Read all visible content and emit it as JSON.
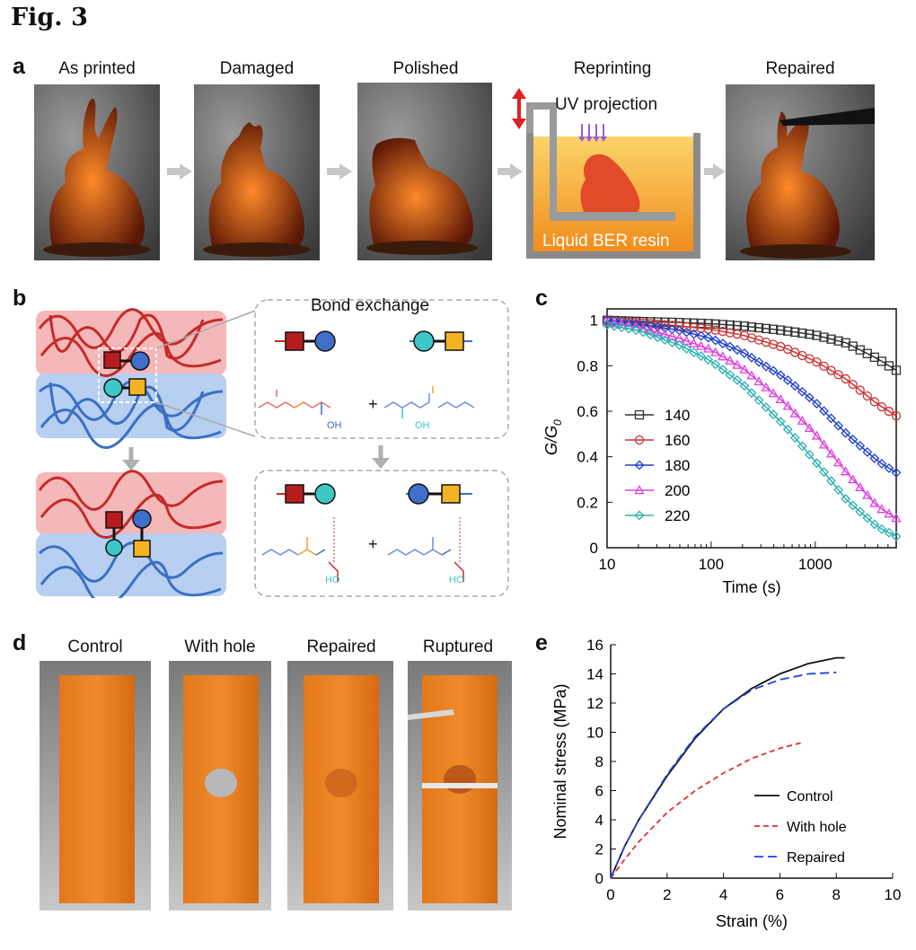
{
  "figure": {
    "title": "Fig. 3"
  },
  "panels": {
    "a": "a",
    "b": "b",
    "c": "c",
    "d": "d",
    "e": "e"
  },
  "panel_a": {
    "captions": [
      "As printed",
      "Damaged",
      "Polished",
      "Reprinting",
      "Repaired"
    ],
    "uv_label": "UV projection",
    "resin_label": "Liquid BER resin",
    "colors": {
      "bg_dark": "#2d2d2d",
      "resin_orange": "#f7a12a",
      "bunny": "#d24d1a"
    }
  },
  "panel_b": {
    "bond_exchange_label": "Bond exchange",
    "plus": "+",
    "oh": "OH",
    "ho": "HO",
    "colors": {
      "red_net": "#c42a2a",
      "blue_net": "#3a6fc4",
      "red_bg": "#f5b8b8",
      "blue_bg": "#b7cff0",
      "square_red": "#b71c1c",
      "circle_blue": "#3f6fc8",
      "circle_teal": "#3ec7c7",
      "square_yellow": "#f5b324"
    }
  },
  "panel_d": {
    "captions": [
      "Control",
      "With hole",
      "Repaired",
      "Ruptured"
    ]
  },
  "chart_data": [
    {
      "type": "line",
      "panel": "c",
      "xlabel": "Time (s)",
      "ylabel": "G/G0",
      "xscale": "log",
      "xlim": [
        10,
        6000
      ],
      "ylim": [
        0,
        1.05
      ],
      "xticks": [
        "10",
        "100",
        "1000"
      ],
      "yticks": [
        "0",
        "0.2",
        "0.4",
        "0.6",
        "0.8",
        "1"
      ],
      "legend_position": "center-left",
      "x": [
        10,
        20,
        50,
        100,
        200,
        500,
        1000,
        2000,
        4000,
        6000
      ],
      "series": [
        {
          "name": "140",
          "marker": "square",
          "color": "#333333",
          "values": [
            1.0,
            0.995,
            0.99,
            0.985,
            0.975,
            0.955,
            0.935,
            0.9,
            0.83,
            0.78
          ]
        },
        {
          "name": "160",
          "marker": "circle",
          "color": "#cc3333",
          "values": [
            1.0,
            0.99,
            0.975,
            0.96,
            0.935,
            0.88,
            0.82,
            0.74,
            0.63,
            0.58
          ]
        },
        {
          "name": "180",
          "marker": "diamond",
          "color": "#1f3fcc",
          "values": [
            1.0,
            0.985,
            0.955,
            0.92,
            0.86,
            0.75,
            0.64,
            0.5,
            0.38,
            0.33
          ]
        },
        {
          "name": "200",
          "marker": "triangle",
          "color": "#e040e0",
          "values": [
            0.99,
            0.97,
            0.92,
            0.87,
            0.79,
            0.64,
            0.5,
            0.33,
            0.18,
            0.13
          ]
        },
        {
          "name": "220",
          "marker": "diamond",
          "color": "#2ab0b0",
          "values": [
            0.98,
            0.955,
            0.89,
            0.82,
            0.72,
            0.54,
            0.38,
            0.21,
            0.09,
            0.05
          ]
        }
      ]
    },
    {
      "type": "line",
      "panel": "e",
      "xlabel": "Strain (%)",
      "ylabel": "Nominal stress (MPa)",
      "xlim": [
        0,
        10
      ],
      "ylim": [
        0,
        16
      ],
      "xticks": [
        "0",
        "2",
        "4",
        "6",
        "8",
        "10"
      ],
      "yticks": [
        "0",
        "2",
        "4",
        "6",
        "8",
        "10",
        "12",
        "14",
        "16"
      ],
      "legend_position": "bottom-right",
      "series": [
        {
          "name": "Control",
          "style": "solid",
          "color": "#111111",
          "x": [
            0,
            0.5,
            1,
            2,
            3,
            4,
            5,
            6,
            7,
            8,
            8.3
          ],
          "values": [
            0,
            2.2,
            4.0,
            7.0,
            9.6,
            11.6,
            13.0,
            14.0,
            14.7,
            15.1,
            15.1
          ]
        },
        {
          "name": "With hole",
          "style": "dashed",
          "color": "#e03030",
          "x": [
            0,
            0.5,
            1,
            2,
            3,
            4,
            5,
            6,
            6.8
          ],
          "values": [
            0,
            1.3,
            2.5,
            4.5,
            6.0,
            7.2,
            8.2,
            8.9,
            9.3
          ]
        },
        {
          "name": "Repaired",
          "style": "dashed",
          "color": "#2040e0",
          "x": [
            0,
            0.5,
            1,
            2,
            3,
            4,
            5,
            6,
            7,
            8
          ],
          "values": [
            0,
            2.2,
            4.0,
            7.1,
            9.7,
            11.6,
            12.9,
            13.6,
            14.0,
            14.1
          ]
        }
      ]
    }
  ]
}
